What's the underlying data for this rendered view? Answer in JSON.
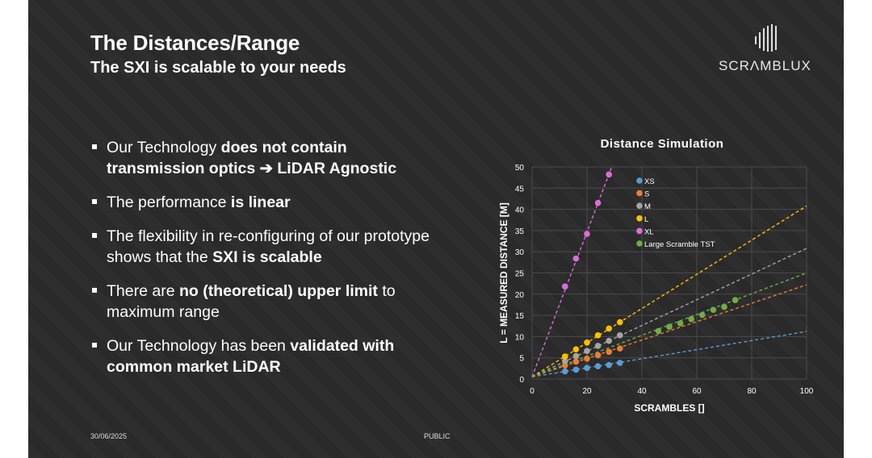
{
  "header": {
    "title": "The Distances/Range",
    "subtitle": "The SXI is scalable to your needs"
  },
  "logo": {
    "text": "SCRΛMBLUX",
    "icon": "signal-bars-icon"
  },
  "bullets": [
    {
      "parts": [
        {
          "t": "Our Technology ",
          "b": false
        },
        {
          "t": "does not contain transmission optics ➔ LiDAR Agnostic",
          "b": true
        }
      ]
    },
    {
      "parts": [
        {
          "t": "The performance ",
          "b": false
        },
        {
          "t": "is linear",
          "b": true
        }
      ]
    },
    {
      "parts": [
        {
          "t": "The flexibility in re-configuring of our prototype shows that the ",
          "b": false
        },
        {
          "t": "SXI is scalable",
          "b": true
        }
      ]
    },
    {
      "parts": [
        {
          "t": "There are ",
          "b": false
        },
        {
          "t": "no (theoretical) upper limit",
          "b": true
        },
        {
          "t": " to maximum range",
          "b": false
        }
      ]
    },
    {
      "parts": [
        {
          "t": "Our Technology has been ",
          "b": false
        },
        {
          "t": "validated with common market LiDAR",
          "b": true
        }
      ]
    }
  ],
  "footer": {
    "date": "30/06/2025",
    "classification": "PUBLIC"
  },
  "colors": {
    "background": "#2b2b2b",
    "XS": "#5b9bd5",
    "S": "#ed7d31",
    "M": "#a5a5a5",
    "L": "#ffc000",
    "XL": "#d96fd9",
    "TST": "#70ad47"
  },
  "chart_data": {
    "type": "scatter",
    "title": "Distance Simulation",
    "xlabel": "SCRAMBLES []",
    "ylabel": "L = MEASURED DISTANCE [M]",
    "xlim": [
      0,
      100
    ],
    "ylim": [
      0,
      50
    ],
    "xticks": [
      0,
      20,
      40,
      60,
      80,
      100
    ],
    "yticks": [
      0,
      5,
      10,
      15,
      20,
      25,
      30,
      35,
      40,
      45,
      50
    ],
    "grid": true,
    "legend": "top-left",
    "series": [
      {
        "name": "XS",
        "color": "#5b9bd5",
        "x": [
          12,
          16,
          20,
          24,
          28,
          32
        ],
        "y": [
          1.8,
          2.2,
          2.6,
          3.0,
          3.3,
          3.8
        ],
        "trend": [
          [
            0,
            0.5
          ],
          [
            100,
            11.2
          ]
        ]
      },
      {
        "name": "S",
        "color": "#ed7d31",
        "x": [
          12,
          16,
          20,
          24,
          28,
          32
        ],
        "y": [
          3.2,
          4.1,
          4.8,
          5.6,
          6.4,
          7.2
        ],
        "trend": [
          [
            0,
            0.5
          ],
          [
            100,
            22.2
          ]
        ]
      },
      {
        "name": "M",
        "color": "#a5a5a5",
        "x": [
          12,
          16,
          20,
          24,
          28,
          32
        ],
        "y": [
          4.2,
          5.4,
          6.6,
          7.8,
          9.0,
          10.3
        ],
        "trend": [
          [
            0,
            0.5
          ],
          [
            100,
            30.8
          ]
        ]
      },
      {
        "name": "L",
        "color": "#ffc000",
        "x": [
          12,
          16,
          20,
          24,
          28,
          32
        ],
        "y": [
          5.3,
          7.0,
          8.6,
          10.3,
          11.9,
          13.4
        ],
        "trend": [
          [
            0,
            0.5
          ],
          [
            100,
            40.8
          ]
        ]
      },
      {
        "name": "XL",
        "color": "#d96fd9",
        "x": [
          12,
          16,
          20,
          24,
          28
        ],
        "y": [
          21.8,
          28.4,
          34.2,
          41.5,
          48.2
        ],
        "trend": [
          [
            0,
            0.5
          ],
          [
            29,
            50
          ]
        ]
      },
      {
        "name": "Large Scramble TST",
        "color": "#70ad47",
        "x": [
          46,
          50,
          54,
          58,
          62,
          66,
          70,
          74
        ],
        "y": [
          11.3,
          12.3,
          13.1,
          14.1,
          15.1,
          16.3,
          17.0,
          18.6
        ],
        "trend": [
          [
            0,
            0.5
          ],
          [
            100,
            25.0
          ]
        ]
      }
    ]
  }
}
